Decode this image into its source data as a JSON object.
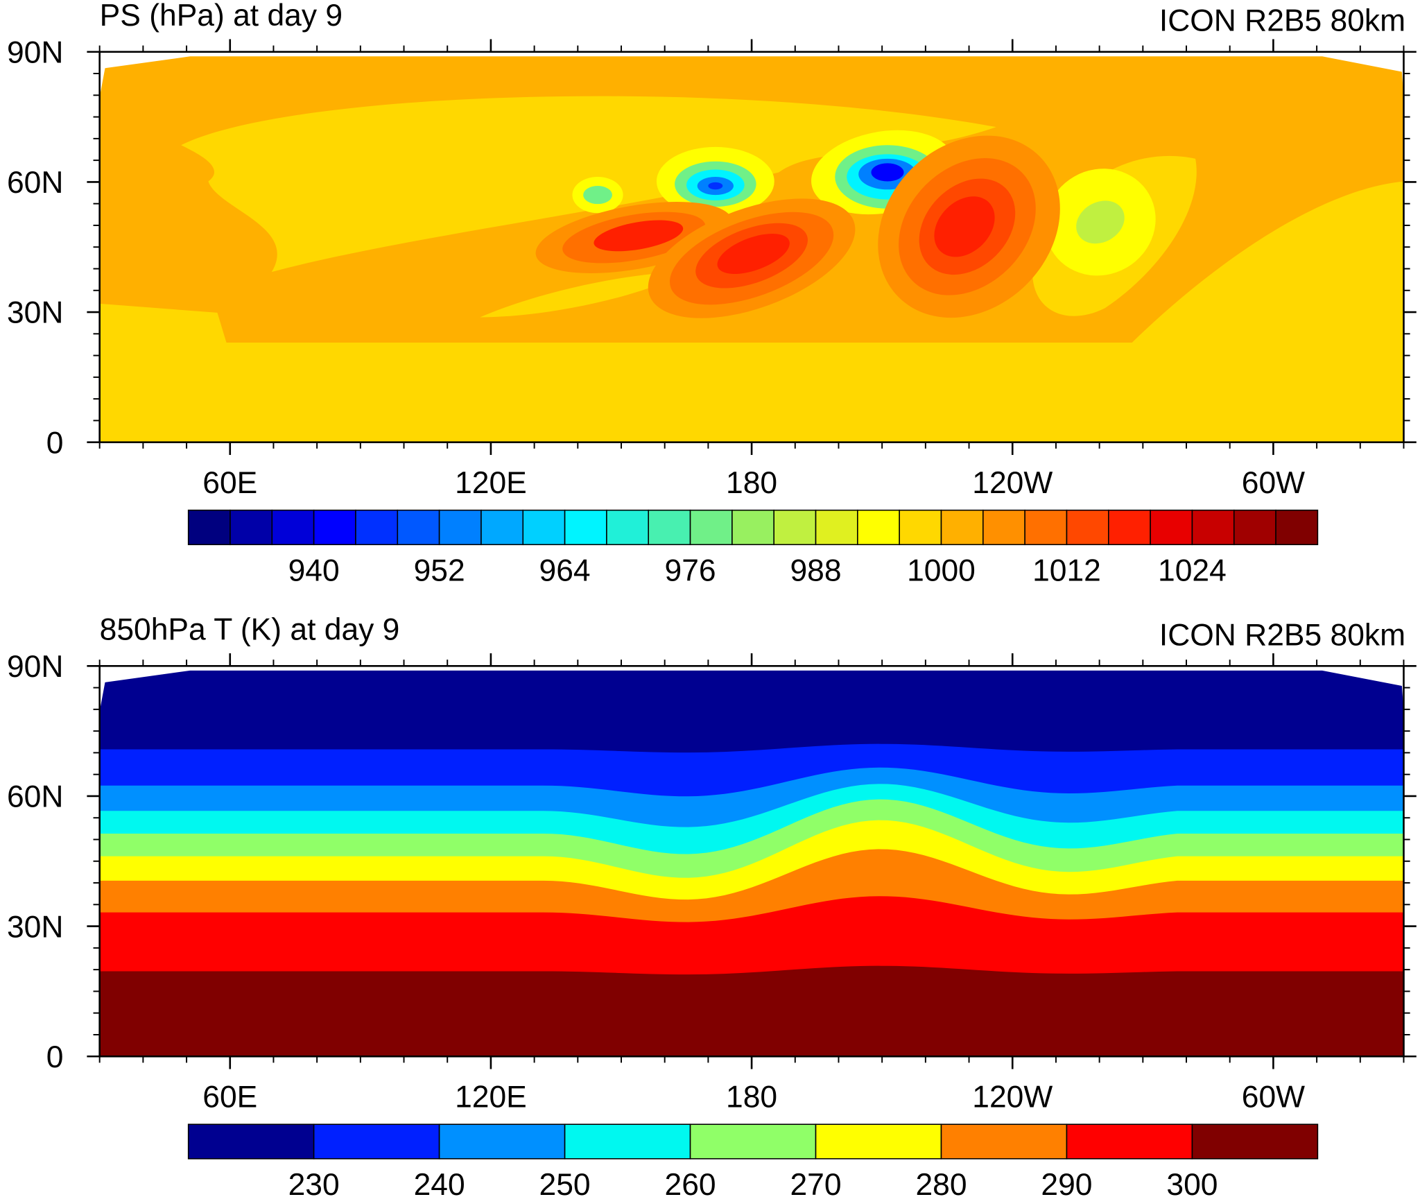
{
  "chart_data": [
    {
      "type": "contour",
      "title": "PS (hPa) at day 9",
      "subtitle": "ICON R2B5 80km",
      "xlim": [
        30,
        330
      ],
      "xticks": [
        {
          "value": 60,
          "label": "60E"
        },
        {
          "value": 120,
          "label": "120E"
        },
        180,
        {
          "value": 240,
          "label": "120W"
        },
        {
          "value": 300,
          "label": "60W"
        }
      ],
      "ylim": [
        0,
        90
      ],
      "yticks": [
        0,
        {
          "value": 30,
          "label": "30N"
        },
        {
          "value": 60,
          "label": "60N"
        },
        {
          "value": 90,
          "label": "90N"
        }
      ],
      "colorbar": {
        "clim": [
          928,
          1036
        ],
        "ticks": [
          940,
          952,
          964,
          976,
          988,
          1000,
          1012,
          1024
        ],
        "colors": [
          "#00007f",
          "#0000a8",
          "#0000d8",
          "#0000ff",
          "#0030ff",
          "#0058ff",
          "#0080ff",
          "#00a8ff",
          "#00d0ff",
          "#00f4ff",
          "#20f0d8",
          "#48f0b0",
          "#70f088",
          "#98f060",
          "#c0f040",
          "#e0f020",
          "#ffff00",
          "#ffd800",
          "#ffb000",
          "#ff9000",
          "#ff7000",
          "#ff4800",
          "#ff2000",
          "#e80000",
          "#c80000",
          "#a00000",
          "#800000"
        ]
      }
    },
    {
      "type": "contour",
      "title": "850hPa T (K) at day 9",
      "subtitle": "ICON R2B5 80km",
      "xlim": [
        30,
        330
      ],
      "xticks": [
        {
          "value": 60,
          "label": "60E"
        },
        {
          "value": 120,
          "label": "120E"
        },
        180,
        {
          "value": 240,
          "label": "120W"
        },
        {
          "value": 300,
          "label": "60W"
        }
      ],
      "ylim": [
        0,
        90
      ],
      "yticks": [
        0,
        {
          "value": 30,
          "label": "30N"
        },
        {
          "value": 60,
          "label": "60N"
        },
        {
          "value": 90,
          "label": "90N"
        }
      ],
      "colorbar": {
        "clim": [
          220,
          310
        ],
        "ticks": [
          230,
          240,
          250,
          260,
          270,
          280,
          290,
          300
        ],
        "colors": [
          "#000090",
          "#0020ff",
          "#0090ff",
          "#00f8f0",
          "#90ff68",
          "#ffff00",
          "#ff8000",
          "#ff0000",
          "#800000"
        ]
      }
    }
  ]
}
